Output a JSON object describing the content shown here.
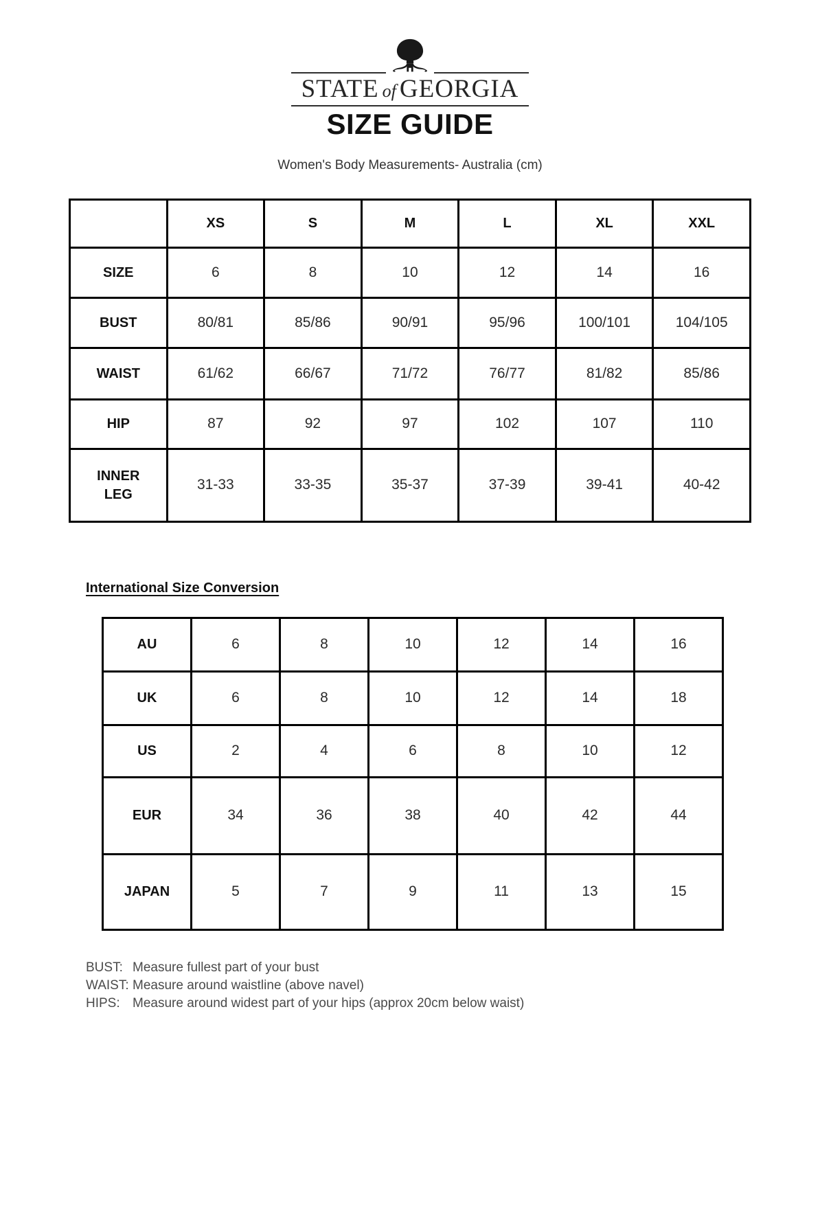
{
  "brand": {
    "name_left": "STATE",
    "name_of": "of",
    "name_right": "GEORGIA"
  },
  "page": {
    "title": "SIZE GUIDE",
    "subtitle": "Women's Body Measurements- Australia (cm)"
  },
  "measurements_table": {
    "columns": [
      "",
      "XS",
      "S",
      "M",
      "L",
      "XL",
      "XXL"
    ],
    "rows": [
      {
        "label": "SIZE",
        "values": [
          "6",
          "8",
          "10",
          "12",
          "14",
          "16"
        ]
      },
      {
        "label": "BUST",
        "values": [
          "80/81",
          "85/86",
          "90/91",
          "95/96",
          "100/101",
          "104/105"
        ]
      },
      {
        "label": "WAIST",
        "values": [
          "61/62",
          "66/67",
          "71/72",
          "76/77",
          "81/82",
          "85/86"
        ]
      },
      {
        "label": "HIP",
        "values": [
          "87",
          "92",
          "97",
          "102",
          "107",
          "110"
        ]
      },
      {
        "label": "INNER LEG",
        "values": [
          "31-33",
          "33-35",
          "35-37",
          "37-39",
          "39-41",
          "40-42"
        ]
      }
    ]
  },
  "conversion_table": {
    "heading": "International Size Conversion",
    "rows": [
      {
        "label": "AU",
        "values": [
          "6",
          "8",
          "10",
          "12",
          "14",
          "16"
        ]
      },
      {
        "label": "UK",
        "values": [
          "6",
          "8",
          "10",
          "12",
          "14",
          "18"
        ]
      },
      {
        "label": "US",
        "values": [
          "2",
          "4",
          "6",
          "8",
          "10",
          "12"
        ]
      },
      {
        "label": "EUR",
        "values": [
          "34",
          "36",
          "38",
          "40",
          "42",
          "44"
        ]
      },
      {
        "label": "JAPAN",
        "values": [
          "5",
          "7",
          "9",
          "11",
          "13",
          "15"
        ]
      }
    ]
  },
  "instructions": [
    {
      "label": "BUST:",
      "text": "Measure fullest part of your bust"
    },
    {
      "label": "WAIST:",
      "text": "Measure around waistline (above navel)"
    },
    {
      "label": "HIPS:",
      "text": "Measure around widest part of your hips (approx 20cm below waist)"
    }
  ],
  "colors": {
    "border": "#000000",
    "text": "#2a2a2a",
    "muted_text": "#4a4a4a",
    "brand_ink": "#262626"
  }
}
